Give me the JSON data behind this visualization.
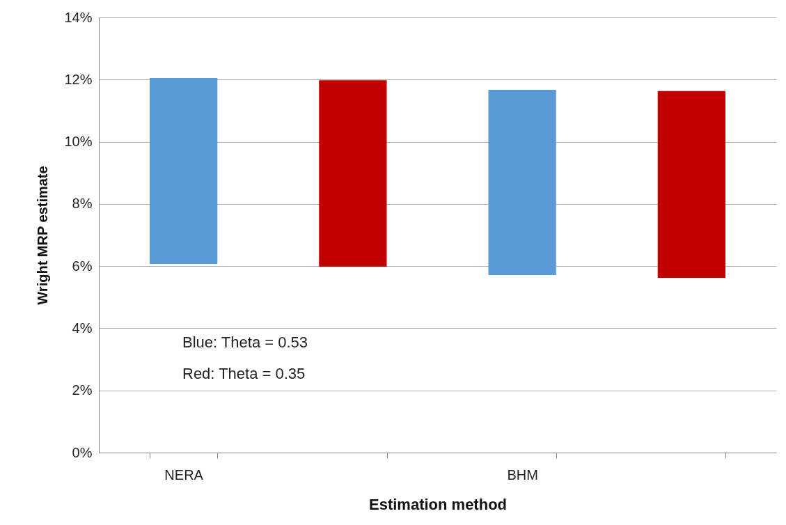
{
  "chart_data": {
    "type": "bar",
    "categories": [
      "NERA",
      null,
      "BHM",
      null
    ],
    "base": [
      6.07,
      5.98,
      5.71,
      5.62
    ],
    "values": [
      5.98,
      6.0,
      5.96,
      6.01
    ],
    "colors": [
      "#5b9bd5",
      "#c00000",
      "#5b9bd5",
      "#c00000"
    ],
    "xlabel": "Estimation method",
    "ylabel": "Wright MRP estimate",
    "ylim": [
      0,
      14
    ],
    "yticks": [
      {
        "value": 0,
        "label": "0%"
      },
      {
        "value": 2,
        "label": "2%"
      },
      {
        "value": 4,
        "label": "4%"
      },
      {
        "value": 6,
        "label": "6%"
      },
      {
        "value": 8,
        "label": "8%"
      },
      {
        "value": 10,
        "label": "10%"
      },
      {
        "value": 12,
        "label": "12%"
      },
      {
        "value": 14,
        "label": "14%"
      }
    ],
    "grid": "y",
    "annotations": [
      "Blue: Theta = 0.53",
      "Red:  Theta = 0.35"
    ]
  }
}
